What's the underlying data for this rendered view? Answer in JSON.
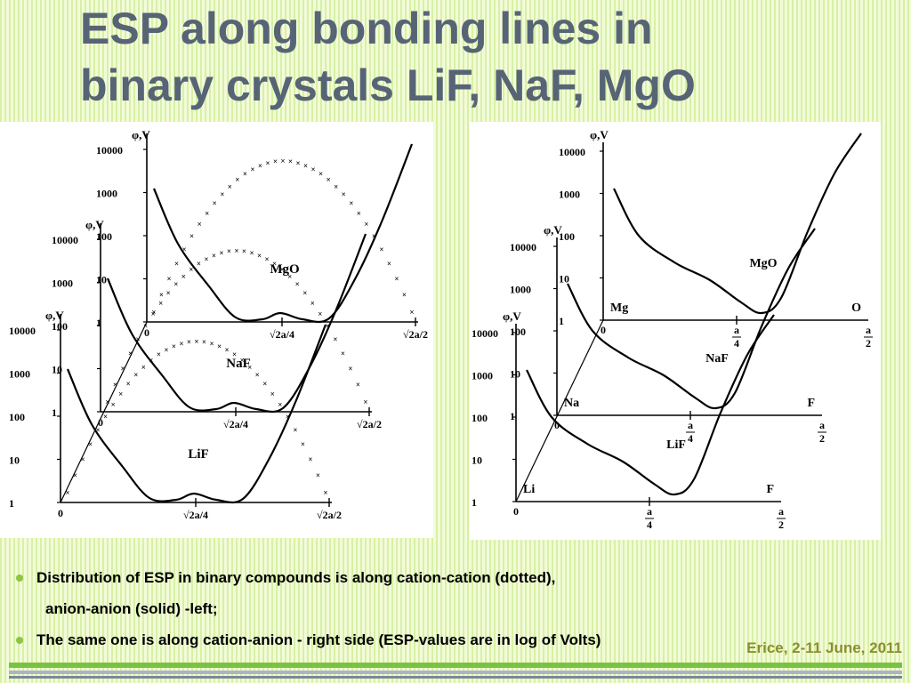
{
  "slide": {
    "title_line1": "ESP along bonding lines in",
    "title_line2": "binary crystals LiF, NaF, MgO",
    "bullets": [
      "Distribution of ESP in binary compounds is along cation-cation (dotted),",
      "anion-anion (solid) -left;",
      "The same one is along cation-anion - right side  (ESP-values are in log of Volts)"
    ],
    "footer": "Erice, 2-11 June, 2011"
  },
  "left_figure": {
    "axis_unit": "φ,V",
    "ticks": [
      "10000",
      "1000",
      "100",
      "10",
      "1"
    ],
    "origin": "0",
    "x_mid": "√2a/4",
    "x_end": "√2a/2",
    "compounds": [
      "MgO",
      "NaF",
      "LiF"
    ]
  },
  "right_figure": {
    "axis_unit": "φ,V",
    "ticks": [
      "10000",
      "1000",
      "100",
      "10",
      "1"
    ],
    "origin": "0",
    "x_mid_num": "a",
    "x_mid_den": "4",
    "x_end_num": "a",
    "x_end_den": "2",
    "compounds": [
      "MgO",
      "NaF",
      "LiF"
    ],
    "cations": [
      "Mg",
      "Na",
      "Li"
    ],
    "anions": [
      "O",
      "F",
      "F"
    ]
  },
  "colors": {
    "title": "#566476",
    "accent": "#7cc242",
    "footer": "#8c8f2e",
    "background": "#f2fbd9"
  }
}
